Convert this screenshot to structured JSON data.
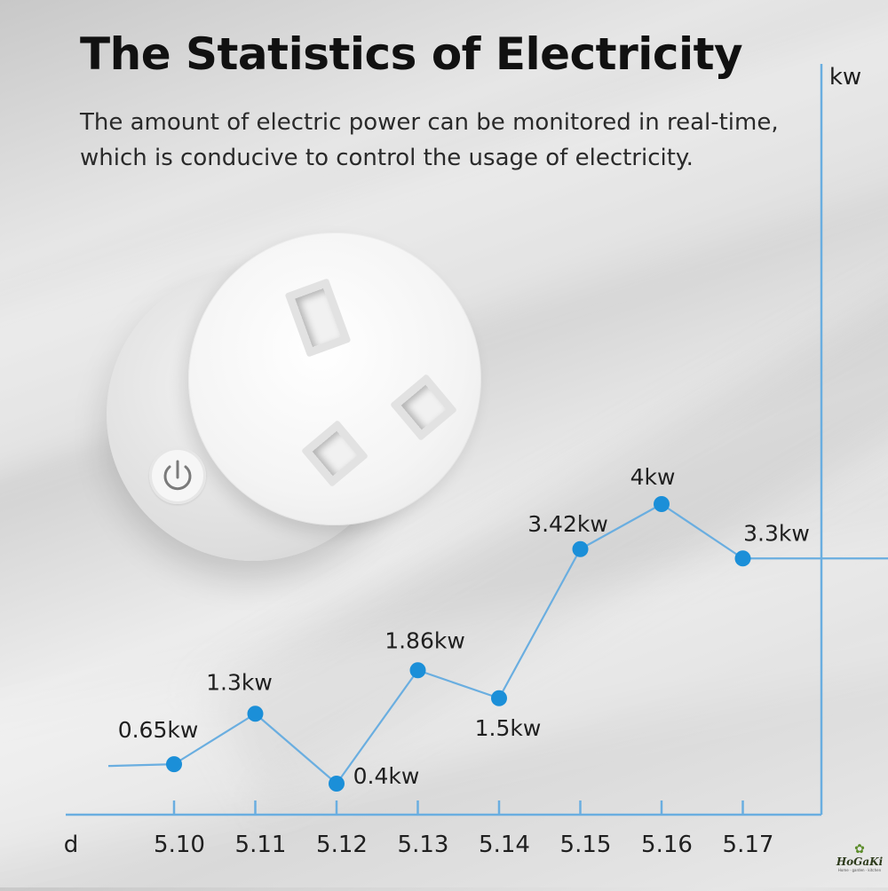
{
  "header": {
    "title": "The Statistics of Electricity",
    "subtitle": "The amount of electric power can be monitored in real-time, which is conducive to control the usage of electricity."
  },
  "logo": {
    "name": "HoGaKi",
    "tagline": "Home · garden · kitchen"
  },
  "colors": {
    "line": "#6aaee0",
    "point": "#1b8fd8",
    "axis": "#6aaee0"
  },
  "chart_data": {
    "type": "line",
    "ylabel": "kw",
    "xlabel": "d",
    "categories": [
      "5.10",
      "5.11",
      "5.12",
      "5.13",
      "5.14",
      "5.15",
      "5.16",
      "5.17"
    ],
    "values": [
      0.65,
      1.3,
      0.4,
      1.86,
      1.5,
      3.42,
      4,
      3.3
    ],
    "data_labels": [
      "0.65kw",
      "1.3kw",
      "0.4kw",
      "1.86kw",
      "1.5kw",
      "3.42kw",
      "4kw",
      "3.3kw"
    ],
    "unit": "kw",
    "ylim": [
      0,
      5
    ],
    "grid": false,
    "legend": "none",
    "line_extends_before_first_point": true,
    "line_extends_after_last_point": true
  }
}
